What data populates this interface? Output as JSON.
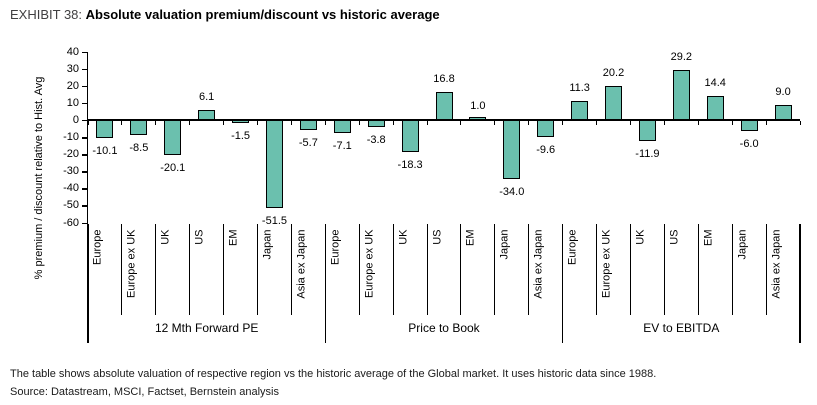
{
  "title": {
    "prefix": "EXHIBIT 38:",
    "main": "Absolute valuation premium/discount vs historic average"
  },
  "chart_data": {
    "type": "bar",
    "title": "Absolute valuation premium/discount vs historic average",
    "ylabel": "% premium / discount relative to Hist. Avg",
    "ylim": [
      -60,
      40
    ],
    "ytick_step": 10,
    "grid": false,
    "legend": "none",
    "bar_color": "#6BC0AE",
    "bar_border_color": "#000000",
    "categories": [
      "Europe",
      "Europe ex UK",
      "UK",
      "US",
      "EM",
      "Japan",
      "Asia ex Japan"
    ],
    "groups": [
      {
        "label": "12 Mth Forward PE",
        "values": [
          -10.1,
          -8.5,
          -20.1,
          6.1,
          -1.5,
          -51.5,
          -5.7
        ]
      },
      {
        "label": "Price to Book",
        "values": [
          -7.1,
          -3.8,
          -18.3,
          16.8,
          1.0,
          -34.0,
          -9.6
        ]
      },
      {
        "label": "EV to EBITDA",
        "values": [
          11.3,
          20.2,
          -11.9,
          29.2,
          14.4,
          -6.0,
          9.0
        ]
      }
    ]
  },
  "footer": {
    "note": "The table shows absolute valuation of respective region vs the historic average of the Global market. It uses historic data since 1988.",
    "source": "Source: Datastream, MSCI, Factset, Bernstein analysis"
  }
}
